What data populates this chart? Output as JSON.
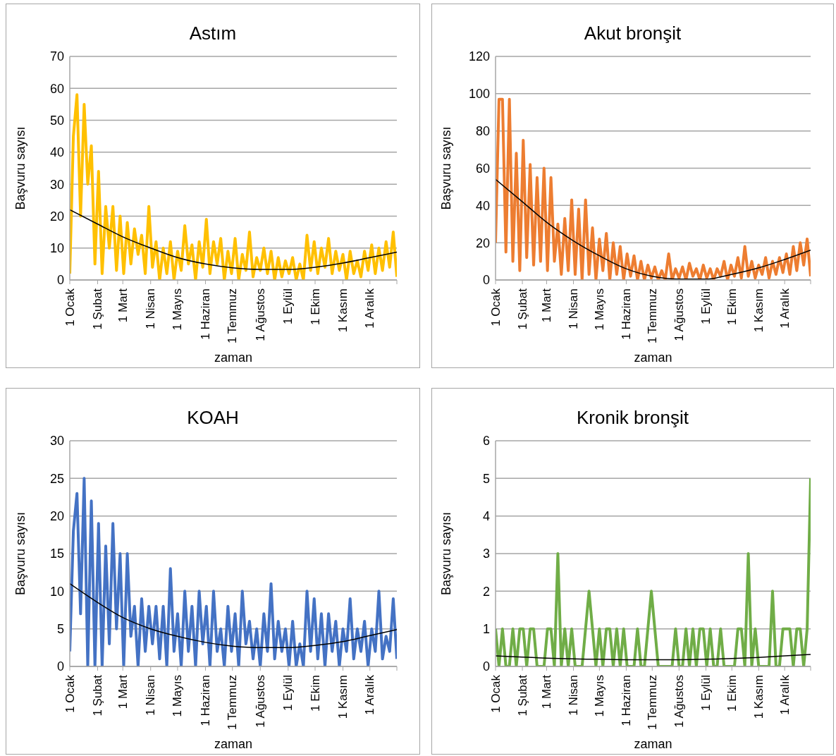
{
  "chart_data": [
    {
      "type": "line",
      "title": "Astım",
      "xlabel": "zaman",
      "ylabel": "Başvuru sayısı",
      "grid": "y",
      "ylim": [
        0,
        70
      ],
      "yticks": [
        0,
        10,
        20,
        30,
        40,
        50,
        60,
        70
      ],
      "xlim": [
        "--01-01",
        "--12-31"
      ],
      "xticks": [
        {
          "value": "--01-01",
          "label": "1 Ocak"
        },
        {
          "value": "--02-01",
          "label": "1 Şubat"
        },
        {
          "value": "--03-01",
          "label": "1 Mart"
        },
        {
          "value": "--04-01",
          "label": "1 Nisan"
        },
        {
          "value": "--05-01",
          "label": "1 Mayıs"
        },
        {
          "value": "--06-01",
          "label": "1 Haziran"
        },
        {
          "value": "--07-01",
          "label": "1 Temmuz"
        },
        {
          "value": "--08-01",
          "label": "1 Ağustos"
        },
        {
          "value": "--09-01",
          "label": "1 Eylül"
        },
        {
          "value": "--10-01",
          "label": "1 Ekim"
        },
        {
          "value": "--11-01",
          "label": "1 Kasım"
        },
        {
          "value": "--12-01",
          "label": "1 Aralık"
        },
        {
          "value": "--12-31",
          "label": null
        }
      ],
      "x": [
        "--01-01",
        "--01-05",
        "--01-09",
        "--01-13",
        "--01-17",
        "--01-21",
        "--01-25",
        "--01-29",
        "--02-02",
        "--02-06",
        "--02-10",
        "--02-14",
        "--02-18",
        "--02-22",
        "--02-26",
        "--03-02",
        "--03-06",
        "--03-10",
        "--03-14",
        "--03-18",
        "--03-22",
        "--03-26",
        "--03-30",
        "--04-03",
        "--04-07",
        "--04-11",
        "--04-15",
        "--04-19",
        "--04-23",
        "--04-27",
        "--05-01",
        "--05-05",
        "--05-09",
        "--05-13",
        "--05-17",
        "--05-21",
        "--05-25",
        "--05-29",
        "--06-02",
        "--06-06",
        "--06-10",
        "--06-14",
        "--06-18",
        "--06-22",
        "--06-26",
        "--06-30",
        "--07-04",
        "--07-08",
        "--07-12",
        "--07-16",
        "--07-20",
        "--07-24",
        "--07-28",
        "--08-01",
        "--08-05",
        "--08-09",
        "--08-13",
        "--08-17",
        "--08-21",
        "--08-25",
        "--08-29",
        "--09-02",
        "--09-06",
        "--09-10",
        "--09-14",
        "--09-18",
        "--09-22",
        "--09-26",
        "--09-30",
        "--10-04",
        "--10-08",
        "--10-12",
        "--10-16",
        "--10-20",
        "--10-24",
        "--10-28",
        "--11-01",
        "--11-05",
        "--11-09",
        "--11-13",
        "--11-17",
        "--11-21",
        "--11-25",
        "--11-29",
        "--12-03",
        "--12-07",
        "--12-11",
        "--12-15",
        "--12-19",
        "--12-23",
        "--12-27",
        "--12-31"
      ],
      "series": [
        {
          "color": "#ffc000",
          "values": [
            2,
            45,
            58,
            20,
            55,
            30,
            42,
            5,
            34,
            2,
            23,
            10,
            23,
            3,
            20,
            2,
            18,
            5,
            16,
            8,
            14,
            2,
            23,
            4,
            12,
            0,
            10,
            2,
            12,
            0,
            9,
            3,
            17,
            5,
            11,
            0,
            12,
            4,
            19,
            2,
            12,
            5,
            13,
            0,
            9,
            2,
            13,
            0,
            8,
            3,
            15,
            1,
            7,
            3,
            10,
            2,
            9,
            0,
            7,
            1,
            6,
            2,
            7,
            0,
            5,
            0,
            14,
            3,
            12,
            2,
            10,
            4,
            13,
            2,
            9,
            3,
            8,
            0,
            9,
            2,
            6,
            1,
            9,
            3,
            11,
            2,
            10,
            3,
            12,
            4,
            15,
            1
          ]
        },
        {
          "type": "line",
          "color": "#000000",
          "x": [
            "--01-01",
            "--02-01",
            "--03-01",
            "--04-01",
            "--05-01",
            "--06-01",
            "--07-01",
            "--08-01",
            "--09-01",
            "--10-01",
            "--11-01",
            "--12-01",
            "--12-31"
          ],
          "values": [
            22,
            17.5,
            13.5,
            10,
            7,
            5,
            3.8,
            3.3,
            3.3,
            4,
            5.3,
            7,
            8.7
          ]
        }
      ]
    },
    {
      "type": "line",
      "title": "Akut bronşit",
      "xlabel": "zaman",
      "ylabel": "Başvuru sayısı",
      "grid": "y",
      "ylim": [
        0,
        120
      ],
      "yticks": [
        0,
        20,
        40,
        60,
        80,
        100,
        120
      ],
      "xlim": [
        "--01-01",
        "--12-31"
      ],
      "xticks": [
        {
          "value": "--01-01",
          "label": "1 Ocak"
        },
        {
          "value": "--02-01",
          "label": "1 Şubat"
        },
        {
          "value": "--03-01",
          "label": "1 Mart"
        },
        {
          "value": "--04-01",
          "label": "1 Nisan"
        },
        {
          "value": "--05-01",
          "label": "1 Mayıs"
        },
        {
          "value": "--06-01",
          "label": "1 Haziran"
        },
        {
          "value": "--07-01",
          "label": "1 Temmuz"
        },
        {
          "value": "--08-01",
          "label": "1 Ağustos"
        },
        {
          "value": "--09-01",
          "label": "1 Eylül"
        },
        {
          "value": "--10-01",
          "label": "1 Ekim"
        },
        {
          "value": "--11-01",
          "label": "1 Kasım"
        },
        {
          "value": "--12-01",
          "label": "1 Aralık"
        },
        {
          "value": "--12-31",
          "label": null
        }
      ],
      "x": [
        "--01-01",
        "--01-05",
        "--01-09",
        "--01-13",
        "--01-17",
        "--01-21",
        "--01-25",
        "--01-29",
        "--02-02",
        "--02-06",
        "--02-10",
        "--02-14",
        "--02-18",
        "--02-22",
        "--02-26",
        "--03-02",
        "--03-06",
        "--03-10",
        "--03-14",
        "--03-18",
        "--03-22",
        "--03-26",
        "--03-30",
        "--04-03",
        "--04-07",
        "--04-11",
        "--04-15",
        "--04-19",
        "--04-23",
        "--04-27",
        "--05-01",
        "--05-05",
        "--05-09",
        "--05-13",
        "--05-17",
        "--05-21",
        "--05-25",
        "--05-29",
        "--06-02",
        "--06-06",
        "--06-10",
        "--06-14",
        "--06-18",
        "--06-22",
        "--06-26",
        "--06-30",
        "--07-04",
        "--07-08",
        "--07-12",
        "--07-16",
        "--07-20",
        "--07-24",
        "--07-28",
        "--08-01",
        "--08-05",
        "--08-09",
        "--08-13",
        "--08-17",
        "--08-21",
        "--08-25",
        "--08-29",
        "--09-02",
        "--09-06",
        "--09-10",
        "--09-14",
        "--09-18",
        "--09-22",
        "--09-26",
        "--09-30",
        "--10-04",
        "--10-08",
        "--10-12",
        "--10-16",
        "--10-20",
        "--10-24",
        "--10-28",
        "--11-01",
        "--11-05",
        "--11-09",
        "--11-13",
        "--11-17",
        "--11-21",
        "--11-25",
        "--11-29",
        "--12-03",
        "--12-07",
        "--12-11",
        "--12-15",
        "--12-19",
        "--12-23",
        "--12-27",
        "--12-31"
      ],
      "series": [
        {
          "color": "#ed7d31",
          "values": [
            20,
            97,
            97,
            15,
            97,
            10,
            68,
            5,
            75,
            12,
            62,
            8,
            55,
            10,
            60,
            5,
            55,
            10,
            30,
            3,
            33,
            5,
            43,
            3,
            38,
            0,
            43,
            3,
            28,
            0,
            22,
            5,
            25,
            0,
            20,
            3,
            18,
            0,
            14,
            2,
            13,
            0,
            10,
            0,
            8,
            1,
            7,
            0,
            5,
            0,
            14,
            0,
            6,
            1,
            7,
            0,
            9,
            2,
            6,
            0,
            8,
            1,
            6,
            0,
            6,
            2,
            10,
            0,
            8,
            2,
            12,
            1,
            18,
            2,
            10,
            1,
            8,
            3,
            12,
            1,
            10,
            3,
            12,
            4,
            14,
            3,
            18,
            5,
            20,
            8,
            22,
            2
          ]
        },
        {
          "type": "line",
          "color": "#000000",
          "x": [
            "--01-01",
            "--02-01",
            "--03-01",
            "--04-01",
            "--05-01",
            "--06-01",
            "--07-01",
            "--08-01",
            "--09-01",
            "--10-01",
            "--11-01",
            "--12-01",
            "--12-31"
          ],
          "values": [
            54,
            42,
            31,
            21,
            13,
            6,
            2,
            0.5,
            0.5,
            3,
            6.5,
            11,
            16
          ]
        }
      ]
    },
    {
      "type": "line",
      "title": "KOAH",
      "xlabel": "zaman",
      "ylabel": "Başvuru sayısı",
      "grid": "y",
      "ylim": [
        0,
        30
      ],
      "yticks": [
        0,
        5,
        10,
        15,
        20,
        25,
        30
      ],
      "xlim": [
        "--01-01",
        "--12-31"
      ],
      "xticks": [
        {
          "value": "--01-01",
          "label": "1 Ocak"
        },
        {
          "value": "--02-01",
          "label": "1 Şubat"
        },
        {
          "value": "--03-01",
          "label": "1 Mart"
        },
        {
          "value": "--04-01",
          "label": "1 Nisan"
        },
        {
          "value": "--05-01",
          "label": "1 Mayıs"
        },
        {
          "value": "--06-01",
          "label": "1 Haziran"
        },
        {
          "value": "--07-01",
          "label": "1 Temmuz"
        },
        {
          "value": "--08-01",
          "label": "1 Ağustos"
        },
        {
          "value": "--09-01",
          "label": "1 Eylül"
        },
        {
          "value": "--10-01",
          "label": "1 Ekim"
        },
        {
          "value": "--11-01",
          "label": "1 Kasım"
        },
        {
          "value": "--12-01",
          "label": "1 Aralık"
        },
        {
          "value": "--12-31",
          "label": null
        }
      ],
      "x": [
        "--01-01",
        "--01-05",
        "--01-09",
        "--01-13",
        "--01-17",
        "--01-21",
        "--01-25",
        "--01-29",
        "--02-02",
        "--02-06",
        "--02-10",
        "--02-14",
        "--02-18",
        "--02-22",
        "--02-26",
        "--03-02",
        "--03-06",
        "--03-10",
        "--03-14",
        "--03-18",
        "--03-22",
        "--03-26",
        "--03-30",
        "--04-03",
        "--04-07",
        "--04-11",
        "--04-15",
        "--04-19",
        "--04-23",
        "--04-27",
        "--05-01",
        "--05-05",
        "--05-09",
        "--05-13",
        "--05-17",
        "--05-21",
        "--05-25",
        "--05-29",
        "--06-02",
        "--06-06",
        "--06-10",
        "--06-14",
        "--06-18",
        "--06-22",
        "--06-26",
        "--06-30",
        "--07-04",
        "--07-08",
        "--07-12",
        "--07-16",
        "--07-20",
        "--07-24",
        "--07-28",
        "--08-01",
        "--08-05",
        "--08-09",
        "--08-13",
        "--08-17",
        "--08-21",
        "--08-25",
        "--08-29",
        "--09-02",
        "--09-06",
        "--09-10",
        "--09-14",
        "--09-18",
        "--09-22",
        "--09-26",
        "--09-30",
        "--10-04",
        "--10-08",
        "--10-12",
        "--10-16",
        "--10-20",
        "--10-24",
        "--10-28",
        "--11-01",
        "--11-05",
        "--11-09",
        "--11-13",
        "--11-17",
        "--11-21",
        "--11-25",
        "--11-29",
        "--12-03",
        "--12-07",
        "--12-11",
        "--12-15",
        "--12-19",
        "--12-23",
        "--12-27",
        "--12-31"
      ],
      "series": [
        {
          "color": "#4472c4",
          "values": [
            2,
            18,
            23,
            7,
            25,
            0,
            22,
            0,
            19,
            0,
            16,
            3,
            19,
            5,
            15,
            0,
            15,
            4,
            8,
            0,
            9,
            2,
            8,
            3,
            8,
            1,
            8,
            0,
            13,
            2,
            7,
            0,
            10,
            2,
            8,
            0,
            10,
            3,
            8,
            0,
            10,
            2,
            5,
            0,
            8,
            2,
            7,
            0,
            10,
            3,
            6,
            1,
            5,
            0,
            7,
            2,
            11,
            1,
            6,
            2,
            5,
            0,
            6,
            0,
            3,
            0,
            10,
            2,
            9,
            1,
            7,
            0,
            7,
            2,
            6,
            0,
            5,
            2,
            9,
            1,
            5,
            2,
            6,
            0,
            5,
            2,
            10,
            1,
            4,
            2,
            9,
            1
          ]
        },
        {
          "type": "line",
          "color": "#000000",
          "x": [
            "--01-01",
            "--02-01",
            "--03-01",
            "--04-01",
            "--05-01",
            "--06-01",
            "--07-01",
            "--08-01",
            "--09-01",
            "--10-01",
            "--11-01",
            "--12-01",
            "--12-31"
          ],
          "values": [
            11,
            8.5,
            6.5,
            5,
            4,
            3.2,
            2.7,
            2.5,
            2.5,
            2.8,
            3.3,
            4.1,
            4.9
          ]
        }
      ]
    },
    {
      "type": "line",
      "title": "Kronik bronşit",
      "xlabel": "zaman",
      "ylabel": "Başvuru sayısı",
      "grid": "y",
      "ylim": [
        0,
        6
      ],
      "yticks": [
        0,
        1,
        2,
        3,
        4,
        5,
        6
      ],
      "xlim": [
        "--01-01",
        "--12-31"
      ],
      "xticks": [
        {
          "value": "--01-01",
          "label": "1 Ocak"
        },
        {
          "value": "--02-01",
          "label": "1 Şubat"
        },
        {
          "value": "--03-01",
          "label": "1 Mart"
        },
        {
          "value": "--04-01",
          "label": "1 Nisan"
        },
        {
          "value": "--05-01",
          "label": "1 Mayıs"
        },
        {
          "value": "--06-01",
          "label": "1 Haziran"
        },
        {
          "value": "--07-01",
          "label": "1 Temmuz"
        },
        {
          "value": "--08-01",
          "label": "1 Ağustos"
        },
        {
          "value": "--09-01",
          "label": "1 Eylül"
        },
        {
          "value": "--10-01",
          "label": "1 Ekim"
        },
        {
          "value": "--11-01",
          "label": "1 Kasım"
        },
        {
          "value": "--12-01",
          "label": "1 Aralık"
        },
        {
          "value": "--12-31",
          "label": null
        }
      ],
      "x": [
        "--01-01",
        "--01-05",
        "--01-09",
        "--01-13",
        "--01-17",
        "--01-21",
        "--01-25",
        "--01-29",
        "--02-02",
        "--02-06",
        "--02-10",
        "--02-14",
        "--02-18",
        "--02-22",
        "--02-26",
        "--03-02",
        "--03-06",
        "--03-10",
        "--03-14",
        "--03-18",
        "--03-22",
        "--03-26",
        "--03-30",
        "--04-03",
        "--04-07",
        "--04-11",
        "--04-15",
        "--04-19",
        "--04-23",
        "--04-27",
        "--05-01",
        "--05-05",
        "--05-09",
        "--05-13",
        "--05-17",
        "--05-21",
        "--05-25",
        "--05-29",
        "--06-02",
        "--06-06",
        "--06-10",
        "--06-14",
        "--06-18",
        "--06-22",
        "--06-26",
        "--06-30",
        "--07-04",
        "--07-08",
        "--07-12",
        "--07-16",
        "--07-20",
        "--07-24",
        "--07-28",
        "--08-01",
        "--08-05",
        "--08-09",
        "--08-13",
        "--08-17",
        "--08-21",
        "--08-25",
        "--08-29",
        "--09-02",
        "--09-06",
        "--09-10",
        "--09-14",
        "--09-18",
        "--09-22",
        "--09-26",
        "--09-30",
        "--10-04",
        "--10-08",
        "--10-12",
        "--10-16",
        "--10-20",
        "--10-24",
        "--10-28",
        "--11-01",
        "--11-05",
        "--11-09",
        "--11-13",
        "--11-17",
        "--11-21",
        "--11-25",
        "--11-29",
        "--12-03",
        "--12-07",
        "--12-11",
        "--12-15",
        "--12-19",
        "--12-23",
        "--12-27",
        "--12-31"
      ],
      "series": [
        {
          "color": "#70ad47",
          "values": [
            1,
            0,
            1,
            0,
            0,
            1,
            0,
            1,
            1,
            0,
            1,
            1,
            0,
            0,
            0,
            1,
            1,
            0,
            3,
            0,
            1,
            0,
            1,
            0,
            0,
            0,
            1,
            2,
            1,
            0,
            1,
            0,
            1,
            1,
            0,
            1,
            0,
            1,
            0,
            0,
            0,
            1,
            0,
            0,
            1,
            2,
            1,
            0,
            0,
            0,
            0,
            0,
            1,
            0,
            0,
            1,
            0,
            1,
            0,
            1,
            1,
            0,
            1,
            0,
            0,
            1,
            0,
            0,
            0,
            0,
            1,
            1,
            0,
            3,
            0,
            1,
            0,
            0,
            0,
            0,
            2,
            0,
            0,
            1,
            1,
            1,
            0,
            1,
            1,
            0,
            1,
            5
          ]
        },
        {
          "type": "line",
          "color": "#000000",
          "x": [
            "--01-01",
            "--02-01",
            "--03-01",
            "--04-01",
            "--05-01",
            "--06-01",
            "--07-01",
            "--08-01",
            "--09-01",
            "--10-01",
            "--11-01",
            "--12-01",
            "--12-31"
          ],
          "values": [
            0.28,
            0.25,
            0.22,
            0.2,
            0.19,
            0.18,
            0.18,
            0.18,
            0.19,
            0.21,
            0.24,
            0.28,
            0.32
          ]
        }
      ]
    }
  ]
}
